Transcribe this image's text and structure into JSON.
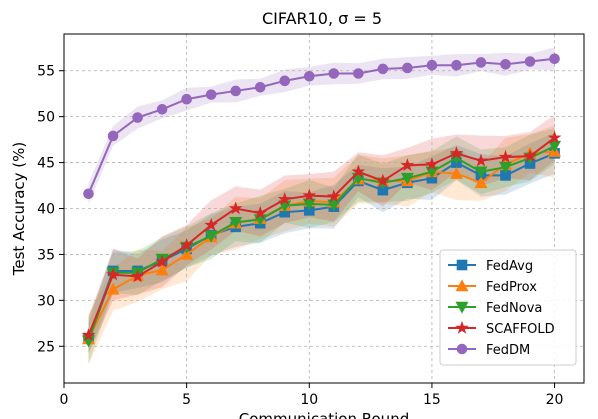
{
  "chart_data": {
    "type": "line",
    "title": "CIFAR10, σ = 5",
    "xlabel": "Communication Round",
    "ylabel": "Test Accuracy (%)",
    "xlim": [
      0,
      21.2
    ],
    "ylim": [
      21,
      59
    ],
    "x_ticks": [
      0,
      5,
      10,
      15,
      20
    ],
    "y_ticks": [
      25,
      30,
      35,
      40,
      45,
      50,
      55
    ],
    "grid": true,
    "legend_position": "bottom-right",
    "x": [
      1,
      2,
      3,
      4,
      5,
      6,
      7,
      8,
      9,
      10,
      11,
      12,
      13,
      14,
      15,
      16,
      17,
      18,
      19,
      20
    ],
    "series": [
      {
        "name": "FedAvg",
        "color": "#1f77b4",
        "marker": "square",
        "values": [
          25.9,
          33.2,
          33.2,
          34.3,
          35.6,
          37.1,
          38.0,
          38.4,
          39.6,
          39.8,
          40.2,
          43.0,
          42.0,
          42.8,
          43.3,
          45.0,
          43.6,
          43.6,
          44.9,
          46.0
        ]
      },
      {
        "name": "FedProx",
        "color": "#ff7f0e",
        "marker": "triangle-up",
        "values": [
          25.8,
          31.2,
          32.7,
          33.3,
          35.0,
          36.9,
          38.4,
          38.9,
          40.3,
          40.8,
          40.7,
          43.2,
          43.0,
          43.0,
          44.0,
          43.8,
          42.8,
          44.8,
          46.0,
          46.2
        ]
      },
      {
        "name": "FedNova",
        "color": "#2ca02c",
        "marker": "triangle-down",
        "values": [
          25.6,
          33.0,
          33.0,
          34.5,
          35.8,
          37.0,
          38.5,
          38.8,
          40.3,
          40.5,
          40.4,
          43.3,
          42.8,
          43.3,
          44.0,
          45.5,
          44.0,
          44.5,
          45.5,
          46.8
        ]
      },
      {
        "name": "SCAFFOLD",
        "color": "#d62728",
        "marker": "star",
        "values": [
          26.2,
          32.8,
          32.6,
          34.2,
          36.0,
          38.2,
          40.0,
          39.5,
          41.0,
          41.4,
          41.3,
          44.0,
          43.0,
          44.7,
          44.8,
          46.0,
          45.2,
          45.6,
          45.7,
          47.7
        ]
      },
      {
        "name": "FedDM",
        "color": "#9467bd",
        "marker": "circle",
        "values": [
          41.6,
          47.9,
          49.9,
          50.8,
          51.9,
          52.4,
          52.8,
          53.2,
          53.9,
          54.4,
          54.7,
          54.7,
          55.2,
          55.3,
          55.6,
          55.6,
          55.9,
          55.7,
          56.0,
          56.3
        ]
      }
    ]
  }
}
